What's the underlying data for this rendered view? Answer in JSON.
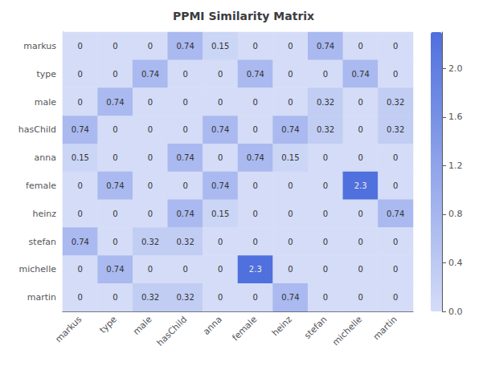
{
  "chart_data": {
    "type": "heatmap",
    "title": "PPMI Similarity Matrix",
    "categories": [
      "markus",
      "type",
      "male",
      "hasChild",
      "anna",
      "female",
      "heinz",
      "stefan",
      "michelle",
      "martin"
    ],
    "matrix": [
      [
        0,
        0,
        0,
        0.74,
        0.15,
        0,
        0,
        0.74,
        0,
        0
      ],
      [
        0,
        0,
        0.74,
        0,
        0,
        0.74,
        0,
        0,
        0.74,
        0
      ],
      [
        0,
        0.74,
        0,
        0,
        0,
        0,
        0,
        0.32,
        0,
        0.32
      ],
      [
        0.74,
        0,
        0,
        0,
        0.74,
        0,
        0.74,
        0.32,
        0,
        0.32
      ],
      [
        0.15,
        0,
        0,
        0.74,
        0,
        0.74,
        0.15,
        0,
        0,
        0
      ],
      [
        0,
        0.74,
        0,
        0,
        0.74,
        0,
        0,
        0,
        2.3,
        0
      ],
      [
        0,
        0,
        0,
        0.74,
        0.15,
        0,
        0,
        0,
        0,
        0.74
      ],
      [
        0.74,
        0,
        0.32,
        0.32,
        0,
        0,
        0,
        0,
        0,
        0
      ],
      [
        0,
        0.74,
        0,
        0,
        0,
        2.3,
        0,
        0,
        0,
        0
      ],
      [
        0,
        0,
        0.32,
        0.32,
        0,
        0,
        0.74,
        0,
        0,
        0
      ]
    ],
    "colorbar_range": [
      0.0,
      2.3
    ],
    "colorbar_ticks": [
      {
        "value": 0.0,
        "label": "0.0"
      },
      0.4,
      0.8,
      1.2,
      1.6,
      {
        "value": 2.0,
        "label": "2.0"
      }
    ],
    "data_labels": true
  }
}
